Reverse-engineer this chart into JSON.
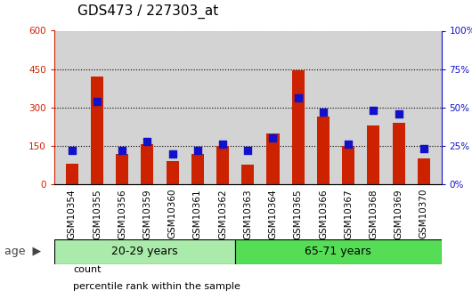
{
  "title": "GDS473 / 227303_at",
  "samples": [
    "GSM10354",
    "GSM10355",
    "GSM10356",
    "GSM10359",
    "GSM10360",
    "GSM10361",
    "GSM10362",
    "GSM10363",
    "GSM10364",
    "GSM10365",
    "GSM10366",
    "GSM10367",
    "GSM10368",
    "GSM10369",
    "GSM10370"
  ],
  "counts": [
    80,
    420,
    120,
    155,
    90,
    120,
    148,
    75,
    200,
    445,
    265,
    148,
    230,
    240,
    100
  ],
  "percentile_ranks": [
    22,
    54,
    22,
    28,
    20,
    22,
    26,
    22,
    30,
    56,
    47,
    26,
    48,
    46,
    23
  ],
  "group1_count": 7,
  "group2_count": 8,
  "group1_label": "20-29 years",
  "group2_label": "65-71 years",
  "age_label": "age",
  "ylim_left": [
    0,
    600
  ],
  "ylim_right": [
    0,
    100
  ],
  "yticks_left": [
    0,
    150,
    300,
    450,
    600
  ],
  "yticks_right": [
    0,
    25,
    50,
    75,
    100
  ],
  "bar_color": "#cc2200",
  "dot_color": "#1111cc",
  "plot_bg": "#d3d3d3",
  "xtick_bg": "#c0c0c0",
  "group1_bg": "#aaeaaa",
  "group2_bg": "#55dd55",
  "legend_count": "count",
  "legend_pct": "percentile rank within the sample",
  "title_fontsize": 11,
  "tick_fontsize": 7.5,
  "group_fontsize": 9,
  "legend_fontsize": 8
}
